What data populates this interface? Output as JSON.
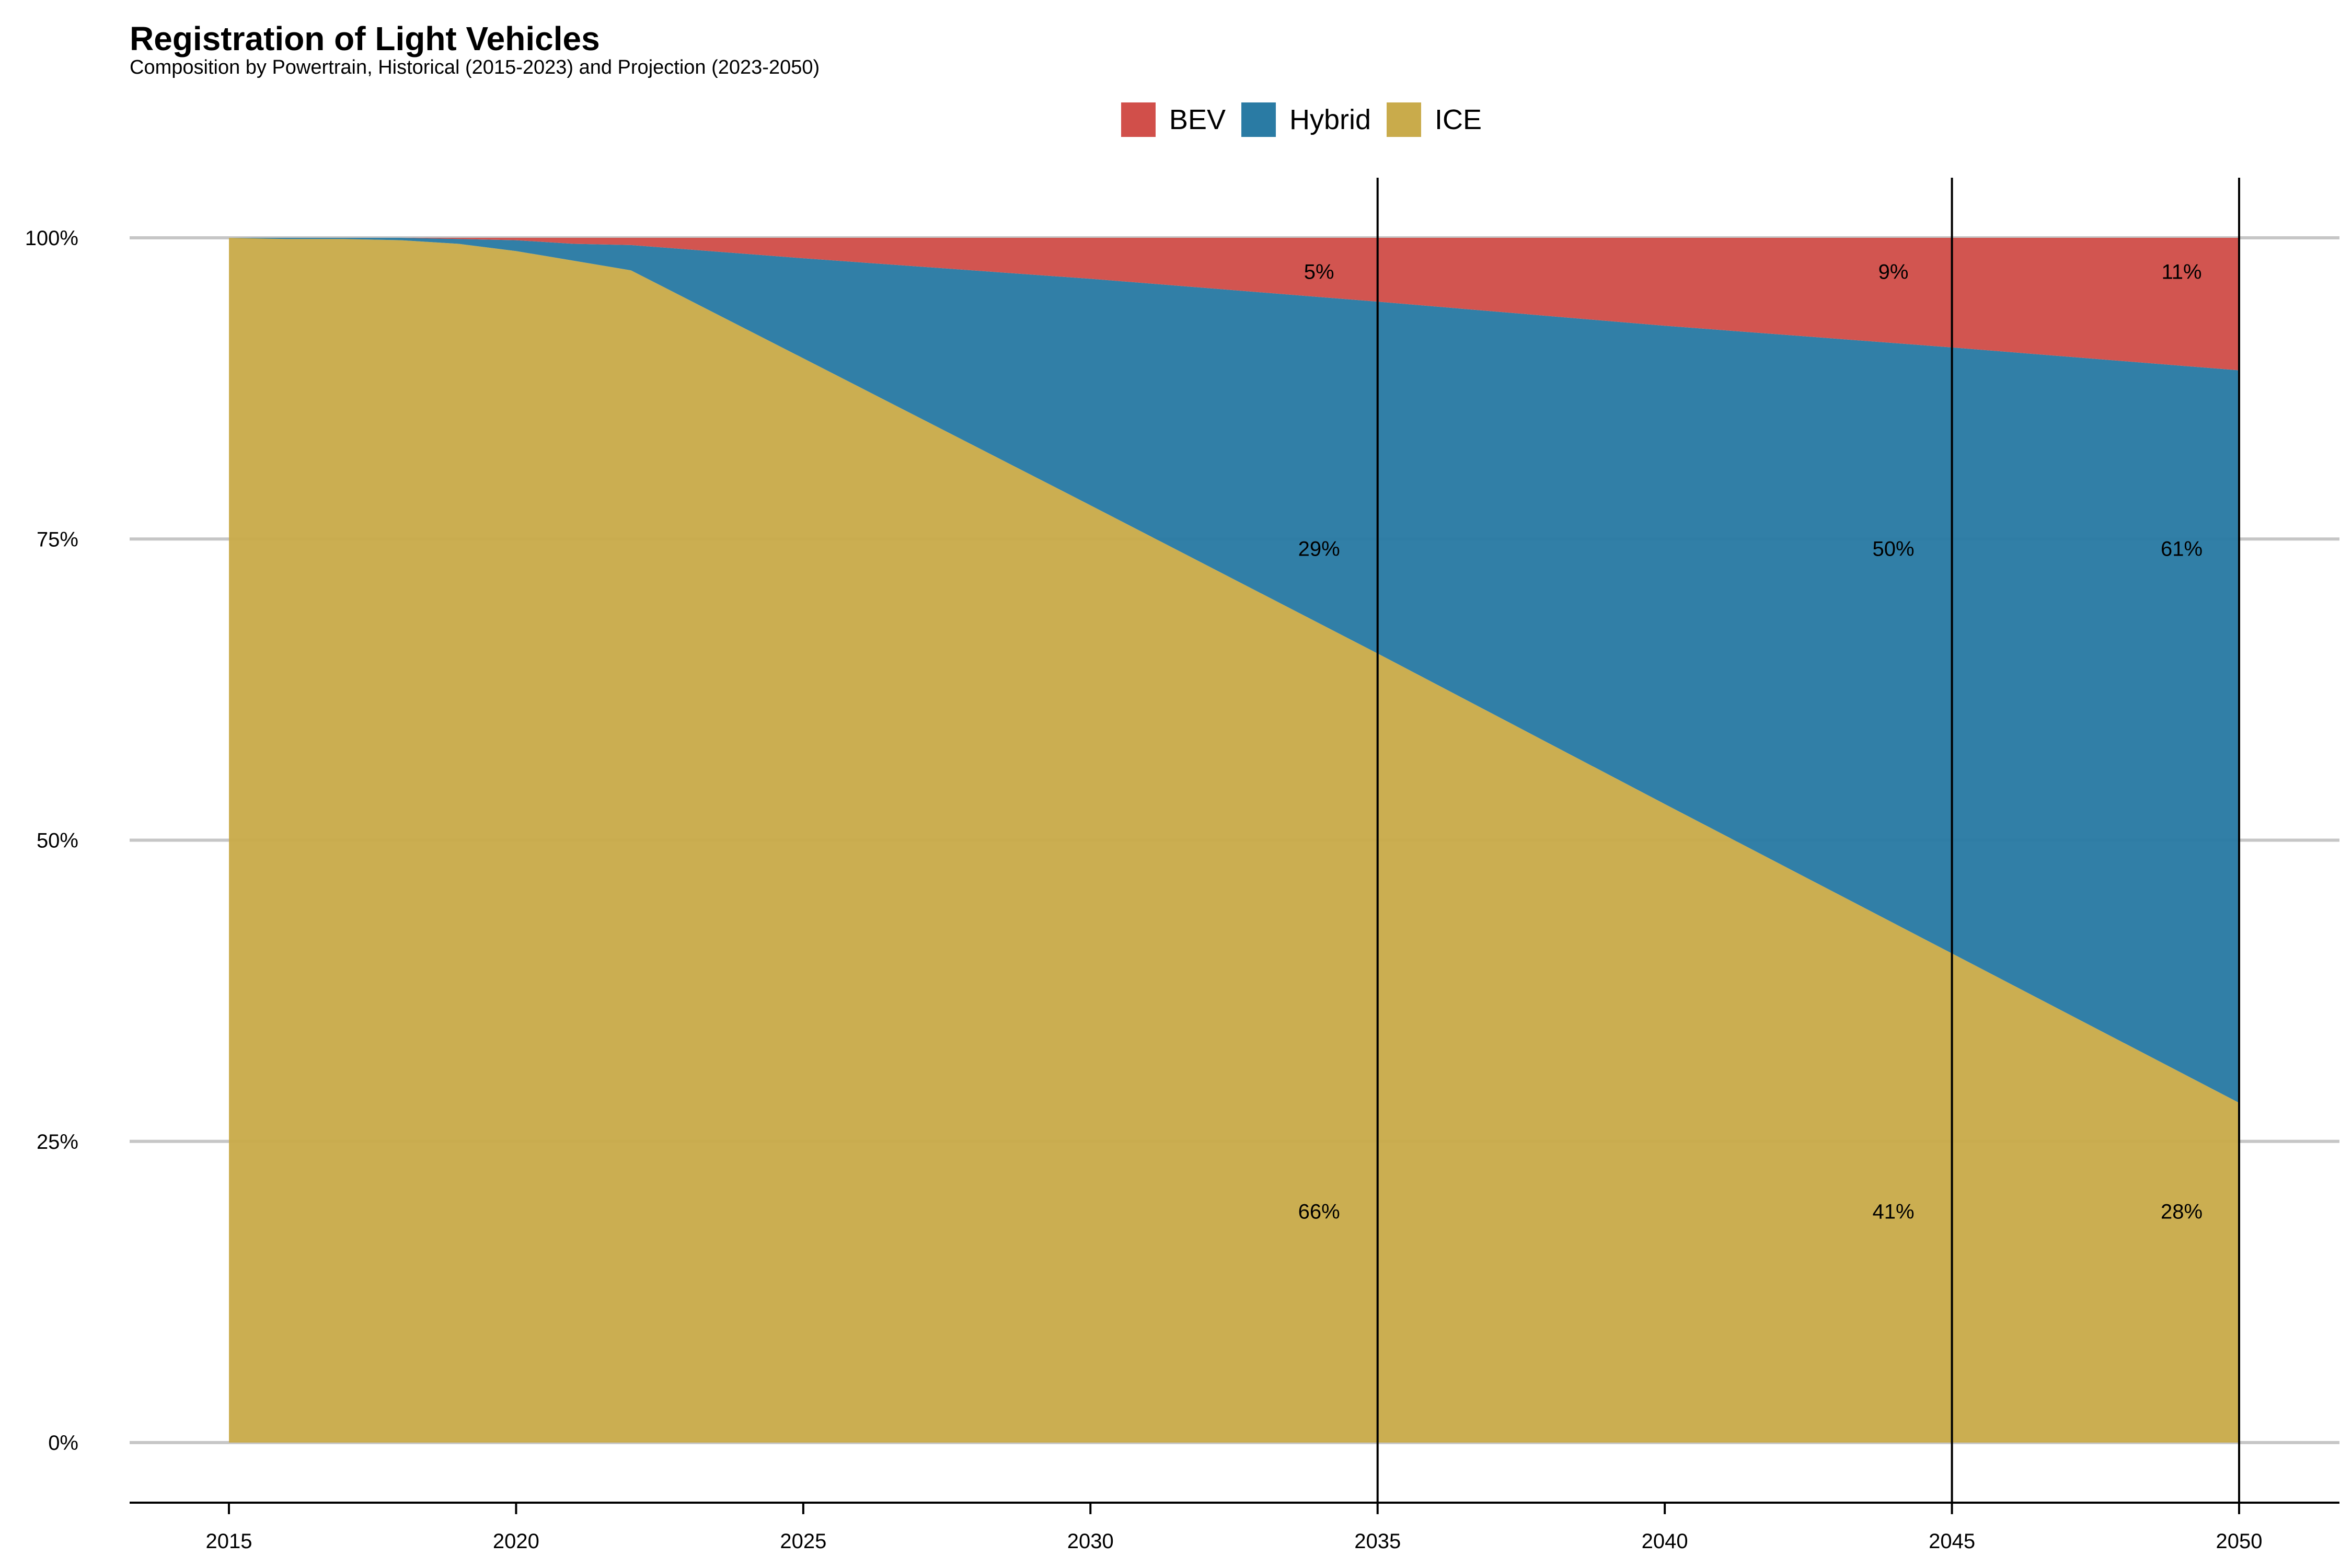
{
  "chart_data": {
    "type": "area",
    "stacked": true,
    "title": "Registration of Light Vehicles",
    "subtitle": "Composition by Powertrain, Historical (2015-2023) and Projection (2023-2050)",
    "xlabel": "",
    "ylabel": "",
    "xlim": [
      2015,
      2050
    ],
    "ylim": [
      0,
      100
    ],
    "x_ticks": [
      "2015",
      "2020",
      "2025",
      "2030",
      "2035",
      "2040",
      "2045",
      "2050"
    ],
    "y_ticks": [
      "0%",
      "25%",
      "50%",
      "75%",
      "100%"
    ],
    "legend_position": "top-center",
    "grid": "horizontal",
    "reference_lines_x": [
      2035,
      2045,
      2050
    ],
    "x": [
      2015,
      2016,
      2017,
      2018,
      2019,
      2020,
      2021,
      2022,
      2025,
      2030,
      2035,
      2040,
      2045,
      2050
    ],
    "series": [
      {
        "name": "ICE",
        "color": "#c9ab4b",
        "values": [
          100,
          99.9,
          99.9,
          99.8,
          99.5,
          98.9,
          98.1,
          97.3,
          90.0,
          77.8,
          65.5,
          53.0,
          40.6,
          28.2
        ]
      },
      {
        "name": "Hybrid",
        "color": "#2a7ba4",
        "values": [
          0,
          0.1,
          0.1,
          0.2,
          0.4,
          0.9,
          1.4,
          2.1,
          8.3,
          18.8,
          29.2,
          39.7,
          50.3,
          60.8
        ]
      },
      {
        "name": "BEV",
        "color": "#d14f4a",
        "values": [
          0,
          0,
          0,
          0,
          0.1,
          0.2,
          0.5,
          0.6,
          1.7,
          3.4,
          5.3,
          7.3,
          9.1,
          11.0
        ]
      }
    ],
    "legend_order": [
      "BEV",
      "Hybrid",
      "ICE"
    ],
    "data_labels": [
      {
        "x": 2035,
        "series": "BEV",
        "text": "5%"
      },
      {
        "x": 2035,
        "series": "Hybrid",
        "text": "29%"
      },
      {
        "x": 2035,
        "series": "ICE",
        "text": "66%"
      },
      {
        "x": 2045,
        "series": "BEV",
        "text": "9%"
      },
      {
        "x": 2045,
        "series": "Hybrid",
        "text": "50%"
      },
      {
        "x": 2045,
        "series": "ICE",
        "text": "41%"
      },
      {
        "x": 2050,
        "series": "BEV",
        "text": "11%"
      },
      {
        "x": 2050,
        "series": "Hybrid",
        "text": "61%"
      },
      {
        "x": 2050,
        "series": "ICE",
        "text": "28%"
      }
    ]
  }
}
